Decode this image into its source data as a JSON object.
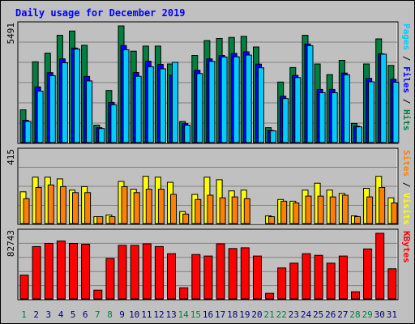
{
  "chart_data": {
    "type": "bar",
    "title": "Daily usage for December 2019",
    "categories": [
      "1",
      "2",
      "3",
      "4",
      "5",
      "6",
      "7",
      "8",
      "9",
      "10",
      "11",
      "12",
      "13",
      "14",
      "15",
      "16",
      "17",
      "18",
      "19",
      "20",
      "21",
      "22",
      "23",
      "24",
      "25",
      "26",
      "27",
      "28",
      "29",
      "30",
      "31"
    ],
    "weekend_days": [
      1,
      7,
      8,
      14,
      15,
      21,
      22,
      28,
      29
    ],
    "panels": [
      {
        "max_label": "5491",
        "ylim": [
          0,
          5491
        ],
        "axis_label_parts": [
          {
            "text": "Pages",
            "color": "#00ccff"
          },
          {
            "text": " / ",
            "color": "#000000"
          },
          {
            "text": "Files",
            "color": "#0000ff"
          },
          {
            "text": " / ",
            "color": "#000000"
          },
          {
            "text": "Hits",
            "color": "#008040"
          }
        ],
        "series": [
          {
            "name": "Hits",
            "color": "#008040",
            "values": [
              1540,
              3800,
              4210,
              5050,
              5250,
              4580,
              820,
              2450,
              5491,
              4300,
              4540,
              4540,
              3700,
              990,
              4100,
              4800,
              4900,
              4950,
              5000,
              4500,
              700,
              2850,
              3530,
              5050,
              3700,
              3200,
              3870,
              900,
              3700,
              4880,
              3630
            ]
          },
          {
            "name": "Files",
            "color": "#0000ff",
            "values": [
              1050,
              2620,
              3290,
              3940,
              4450,
              3110,
              700,
              1890,
              4570,
              3300,
              3830,
              3680,
              3170,
              890,
              3400,
              3940,
              4100,
              4200,
              4270,
              3690,
              570,
              2180,
              3160,
              4640,
              2500,
              2500,
              3270,
              770,
              3020,
              4180,
              2980
            ]
          },
          {
            "name": "Pages",
            "color": "#00ccff",
            "values": [
              1000,
              2420,
              3150,
              3760,
              4400,
              2900,
              660,
              1780,
              4370,
              3120,
              3570,
              3470,
              3780,
              820,
              3250,
              3820,
              4030,
              4040,
              4120,
              3520,
              550,
              2070,
              3060,
              4560,
              2350,
              2350,
              3190,
              740,
              2860,
              4160,
              2840
            ]
          }
        ]
      },
      {
        "max_label": "415",
        "ylim": [
          0,
          415
        ],
        "axis_label_parts": [
          {
            "text": "Sites",
            "color": "#ff8000"
          },
          {
            "text": " / ",
            "color": "#000000"
          },
          {
            "text": "Visits",
            "color": "#ffff00"
          }
        ],
        "series": [
          {
            "name": "Visits",
            "color": "#ffff00",
            "values": [
              185,
              270,
              270,
              260,
              195,
              215,
              40,
              50,
              245,
              200,
              275,
              270,
              240,
              70,
              170,
              270,
              255,
              190,
              195,
              0,
              45,
              140,
              130,
              195,
              235,
              195,
              175,
              45,
              205,
              275,
              150
            ]
          },
          {
            "name": "Sites",
            "color": "#ff8000",
            "values": [
              145,
              210,
              225,
              215,
              180,
              180,
              40,
              40,
              215,
              180,
              200,
              200,
              170,
              55,
              140,
              165,
              150,
              155,
              145,
              0,
              40,
              130,
              120,
              160,
              160,
              155,
              165,
              40,
              155,
              210,
              120
            ]
          }
        ]
      },
      {
        "max_label": "82743",
        "ylim": [
          0,
          82743
        ],
        "axis_label_parts": [
          {
            "text": "KBytes",
            "color": "#ff0000"
          }
        ],
        "series": [
          {
            "name": "KBytes",
            "color": "#ff0000",
            "values": [
              30000,
              66000,
              70000,
              73000,
              70000,
              69000,
              11000,
              51000,
              67500,
              67500,
              69500,
              66000,
              57000,
              14000,
              56000,
              54000,
              69500,
              63500,
              64500,
              54000,
              7000,
              39000,
              45000,
              57000,
              55000,
              45000,
              54000,
              9000,
              63000,
              82743,
              38000
            ]
          }
        ]
      }
    ],
    "grid": true
  }
}
